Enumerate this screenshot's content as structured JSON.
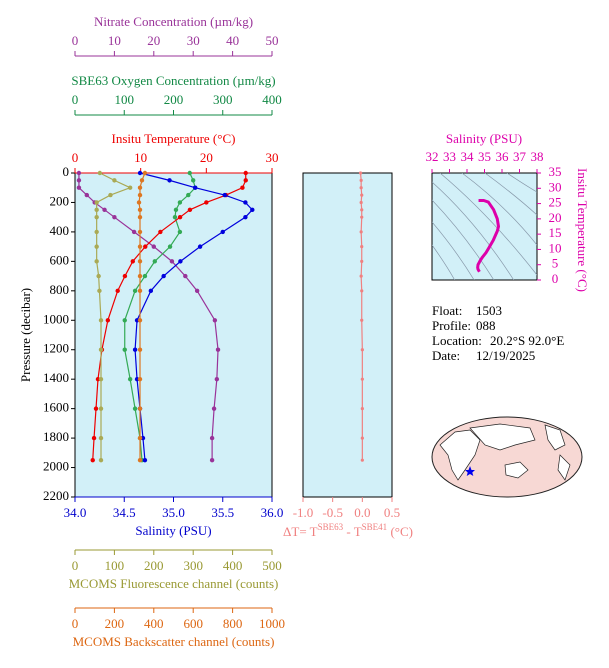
{
  "chart_data": [
    {
      "type": "profile",
      "ylabel": "Pressure (decibar)",
      "ylim": [
        0,
        2200
      ],
      "yticks": [
        0,
        200,
        400,
        600,
        800,
        1000,
        1200,
        1400,
        1600,
        1800,
        2000,
        2200
      ],
      "pressure": [
        0,
        50,
        100,
        150,
        200,
        250,
        300,
        400,
        500,
        600,
        700,
        800,
        1000,
        1200,
        1400,
        1600,
        1800,
        1950
      ],
      "axes": [
        {
          "label": "Nitrate Concentration (µm/kg)",
          "color": "#993399",
          "lim": [
            0,
            50
          ],
          "ticks": [
            0,
            10,
            20,
            30,
            40,
            50
          ]
        },
        {
          "label": "SBE63 Oxygen Concentration (µm/kg)",
          "color": "#118844",
          "lim": [
            0,
            400
          ],
          "ticks": [
            0,
            100,
            200,
            300,
            400
          ]
        },
        {
          "label": "Insitu Temperature (°C)",
          "color": "#ee0000",
          "lim": [
            0,
            30
          ],
          "ticks": [
            0,
            10,
            20,
            30
          ]
        },
        {
          "label": "Salinity (PSU)",
          "color": "#0000cc",
          "lim": [
            34,
            36
          ],
          "ticks": [
            {
              "value": 34,
              "label": "34.0"
            },
            34.5,
            {
              "value": 35,
              "label": "35.0"
            },
            35.5,
            {
              "value": 36,
              "label": "36.0"
            }
          ]
        },
        {
          "label": "MCOMS Fluorescence channel (counts)",
          "color": "#999933",
          "lim": [
            0,
            500
          ],
          "ticks": [
            0,
            100,
            200,
            300,
            400,
            500
          ]
        },
        {
          "label": "MCOMS Backscatter channel (counts)",
          "color": "#dd6611",
          "lim": [
            0,
            1000
          ],
          "ticks": [
            0,
            200,
            400,
            600,
            800,
            1000
          ]
        }
      ],
      "series": [
        {
          "axis": 0,
          "color": "#993399",
          "values": [
            1,
            1,
            1,
            3,
            5,
            7.5,
            10,
            15,
            20,
            24.6,
            28,
            31,
            35.5,
            36.3,
            36,
            35.3,
            34.8,
            34.8
          ]
        },
        {
          "axis": 1,
          "color": "#33aa55",
          "values": [
            233,
            240,
            244,
            230,
            213,
            205,
            203,
            213,
            193,
            162,
            142,
            122,
            101,
            101,
            112,
            122,
            132,
            136
          ]
        },
        {
          "axis": 2,
          "color": "#ee0000",
          "values": [
            26,
            26,
            25.5,
            23,
            20,
            17.5,
            16,
            13,
            10.7,
            8.8,
            7.6,
            6.5,
            5,
            4.1,
            3.5,
            3.2,
            2.9,
            2.7
          ]
        },
        {
          "axis": 3,
          "color": "#0000dd",
          "values": [
            34.66,
            34.96,
            35.22,
            35.52,
            35.73,
            35.8,
            35.73,
            35.5,
            35.27,
            35.07,
            34.9,
            34.77,
            34.63,
            34.61,
            34.63,
            34.66,
            34.69,
            34.71
          ]
        },
        {
          "axis": 4,
          "color": "#aaaa55",
          "values": [
            63,
            100,
            140,
            90,
            55,
            55,
            55,
            55,
            55,
            55,
            60,
            62,
            66,
            66,
            66,
            66,
            66,
            66
          ]
        },
        {
          "axis": 5,
          "color": "#dd7722",
          "values": [
            355,
            340,
            330,
            330,
            325,
            330,
            330,
            330,
            330,
            330,
            330,
            330,
            330,
            330,
            330,
            330,
            330,
            330
          ]
        }
      ]
    },
    {
      "type": "delta",
      "xlabel": [
        "ΔT= T",
        "SBE63",
        " - T",
        "SBE41",
        " (°C)"
      ],
      "color": "#f08080",
      "xlim": [
        -1,
        0.5
      ],
      "xticks": [
        {
          "value": -1,
          "label": "-1.0"
        },
        -0.5,
        {
          "value": 0,
          "label": "0.0"
        },
        0.5
      ],
      "values": [
        -0.03,
        -0.02,
        -0.02,
        -0.01,
        -0.02,
        -0.01,
        -0.01,
        -0.02,
        -0.01,
        -0.01,
        -0.02,
        -0.01,
        -0.01,
        0,
        0,
        0,
        0,
        0
      ]
    },
    {
      "type": "ts",
      "xlabel": "Salinity (PSU)",
      "ylabel": "Insitu Temperature (°C)",
      "color": "#dd00aa",
      "xlim": [
        32,
        38
      ],
      "xticks": [
        32,
        33,
        34,
        35,
        36,
        37,
        38
      ],
      "ylim": [
        0,
        35
      ],
      "yticks": [
        0,
        5,
        10,
        15,
        20,
        25,
        30,
        35
      ]
    }
  ],
  "info": [
    [
      "Float:",
      "1503"
    ],
    [
      "Profile:",
      "088"
    ],
    [
      "Location:",
      "20.2°S  92.0°E"
    ],
    [
      "Date:",
      "12/19/2025"
    ]
  ]
}
